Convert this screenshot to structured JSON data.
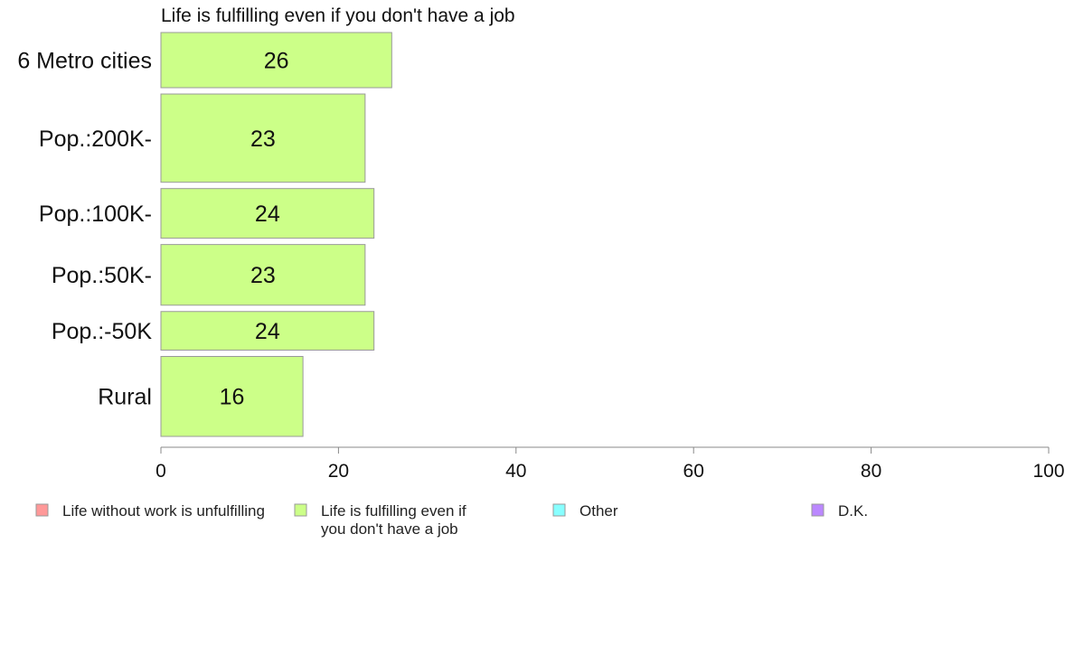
{
  "chart_data": {
    "type": "bar",
    "orientation": "horizontal",
    "title": "Life is fulfilling even if you don't have a job",
    "categories": [
      "6 Metro cities",
      "Pop.:200K-",
      "Pop.:100K-",
      "Pop.:50K-",
      "Pop.:-50K",
      "Rural"
    ],
    "series": [
      {
        "name": "Life is fulfilling even if you don't have a job",
        "values": [
          26,
          23,
          24,
          23,
          24,
          16
        ],
        "color": "#ccff88"
      }
    ],
    "data_labels": [
      "26",
      "23",
      "24",
      "23",
      "24",
      "16"
    ],
    "category_weights": [
      1.0,
      1.6,
      0.9,
      1.1,
      0.7,
      1.45
    ],
    "xlim": [
      0,
      100
    ],
    "xticks": [
      0,
      20,
      40,
      60,
      80,
      100
    ],
    "xtick_labels": [
      "0",
      "20",
      "40",
      "60",
      "80",
      "100"
    ],
    "xlabel": "",
    "ylabel": "",
    "grid": false,
    "legend_position": "bottom",
    "legend": [
      {
        "label_lines": [
          "Life without work is unfulfilling"
        ],
        "color": "#ff9999"
      },
      {
        "label_lines": [
          "Life is fulfilling even if",
          "you don't have a job"
        ],
        "color": "#ccff88"
      },
      {
        "label_lines": [
          "Other"
        ],
        "color": "#88ffff"
      },
      {
        "label_lines": [
          "D.K."
        ],
        "color": "#bb88ff"
      }
    ],
    "colors": {
      "bar_stroke": "#999999",
      "axis": "#888888",
      "text": "#111111"
    }
  }
}
